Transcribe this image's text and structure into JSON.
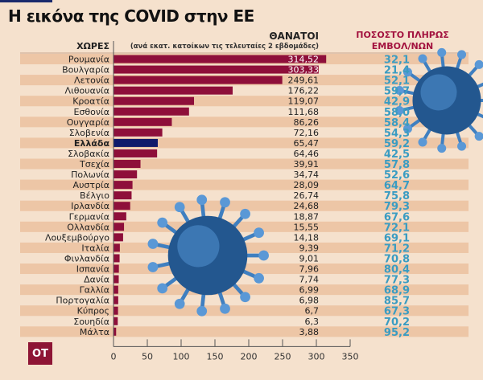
{
  "title": "Η εικόνα της COVID στην ΕΕ",
  "headers": {
    "countries": "ΧΩΡΕΣ",
    "deaths": "ΘΑΝΑΤΟΙ",
    "deaths_sub": "(ανά εκατ. κατοίκων τις τελευταίες 2 εβδομάδες)",
    "vax_line1": "ΠΟΣΟΣΤΟ ΠΛΗΡΩΣ",
    "vax_line2": "ΕΜΒΟΛ/ΝΩΝ"
  },
  "logo": "OT",
  "colors": {
    "bar": "#8e0f3a",
    "highlight": "#101a6b",
    "vax_text": "#3a9cc2",
    "stripe": "#edc6a6",
    "background": "#f5e1cd"
  },
  "chart_data": {
    "type": "bar",
    "orientation": "horizontal",
    "categories": [
      "Ρουμανία",
      "Βουλγαρία",
      "Λετονία",
      "Λιθουανία",
      "Κροατία",
      "Εσθονία",
      "Ουγγαρία",
      "Σλοβενία",
      "Ελλάδα",
      "Σλοβακία",
      "Τσεχία",
      "Πολωνία",
      "Αυστρία",
      "Βέλγιο",
      "Ιρλανδία",
      "Γερμανία",
      "Ολλανδία",
      "Λουξεμβούργο",
      "Ιταλία",
      "Φινλανδία",
      "Ισπανία",
      "Δανία",
      "Γαλλία",
      "Πορτογαλία",
      "Κύπρος",
      "Σουηδία",
      "Μάλτα"
    ],
    "values": [
      314.52,
      303.33,
      249.61,
      176.22,
      119.07,
      111.68,
      86.26,
      72.16,
      65.47,
      64.46,
      39.91,
      34.74,
      28.09,
      26.74,
      24.68,
      18.87,
      15.55,
      14.18,
      9.39,
      9.01,
      7.96,
      7.74,
      6.99,
      6.98,
      6.7,
      6.3,
      3.88
    ],
    "value_labels": [
      "314,52",
      "303,33",
      "249,61",
      "176,22",
      "119,07",
      "111,68",
      "86,26",
      "72,16",
      "65,47",
      "64,46",
      "39,91",
      "34,74",
      "28,09",
      "26,74",
      "24,68",
      "18,87",
      "15,55",
      "14,18",
      "9,39",
      "9,01",
      "7,96",
      "7,74",
      "6,99",
      "6,98",
      "6,7",
      "6,3",
      "3,88"
    ],
    "vaccinated_pct_labels": [
      "32,1",
      "21,4",
      "52,1",
      "59,7",
      "42,9",
      "58,0",
      "58,4",
      "54,3",
      "59,2",
      "42,5",
      "57,8",
      "52,6",
      "64,7",
      "75,8",
      "79,3",
      "67,6",
      "72,1",
      "69,1",
      "71,2",
      "70,8",
      "80,4",
      "77,3",
      "68,9",
      "85,7",
      "67,3",
      "70,2",
      "95,2"
    ],
    "highlight": "Ελλάδα",
    "xlim": [
      0,
      350
    ],
    "xticks": [
      "0",
      "50",
      "100",
      "150",
      "200",
      "250",
      "300",
      "350"
    ],
    "grid": false
  }
}
